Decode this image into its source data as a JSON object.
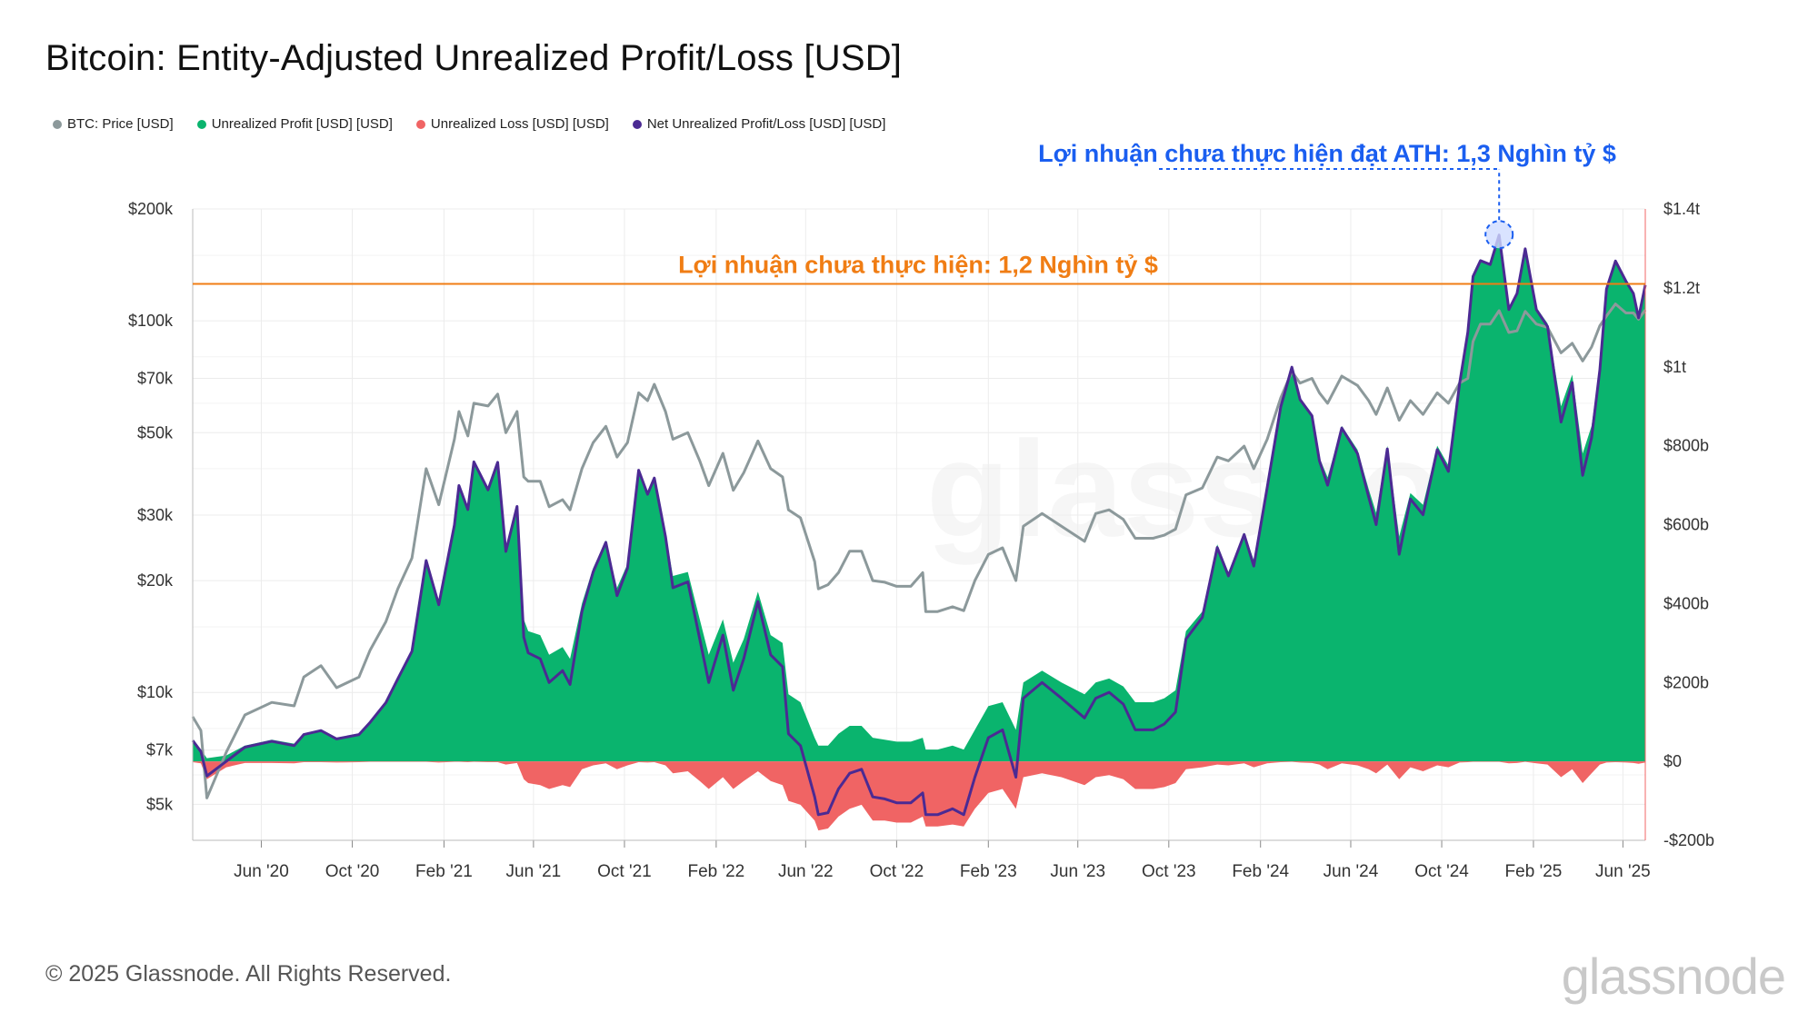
{
  "title": "Bitcoin: Entity-Adjusted Unrealized Profit/Loss [USD]",
  "footer": "© 2025 Glassnode. All Rights Reserved.",
  "brand": "glassnode",
  "colors": {
    "price": "#8c999b",
    "profit": "#0ab46e",
    "loss": "#f06464",
    "net": "#4b2a93",
    "ath_annotation": "#1a5ef0",
    "level_annotation": "#f07d14"
  },
  "chart_data": {
    "type": "area",
    "title": "Bitcoin: Entity-Adjusted Unrealized Profit/Loss [USD]",
    "legend": [
      {
        "key": "price",
        "label": "BTC: Price [USD]"
      },
      {
        "key": "profit",
        "label": "Unrealized Profit [USD] [USD]"
      },
      {
        "key": "loss",
        "label": "Unrealized Loss [USD] [USD]"
      },
      {
        "key": "net",
        "label": "Net Unrealized Profit/Loss [USD] [USD]"
      }
    ],
    "legend_position": "top-left",
    "x_range": [
      "2020-03-01",
      "2025-07-01"
    ],
    "x_ticks": [
      "Jun '20",
      "Oct '20",
      "Feb '21",
      "Jun '21",
      "Oct '21",
      "Feb '22",
      "Jun '22",
      "Oct '22",
      "Feb '23",
      "Jun '23",
      "Oct '23",
      "Feb '24",
      "Jun '24",
      "Oct '24",
      "Feb '25",
      "Jun '25"
    ],
    "left_axis": {
      "scale": "log",
      "range": [
        4000,
        200000
      ],
      "ticks": [
        "$200k",
        "$100k",
        "$70k",
        "$50k",
        "$30k",
        "$20k",
        "$10k",
        "$7k",
        "$5k"
      ]
    },
    "right_axis": {
      "scale": "linear",
      "range": [
        -200,
        1400
      ],
      "unit": "billion USD",
      "ticks": [
        "$1.4t",
        "$1.2t",
        "$1t",
        "$800b",
        "$600b",
        "$400b",
        "$200b",
        "$0",
        "-$200b"
      ]
    },
    "grid": true,
    "annotations": {
      "ath_label": "Lợi nhuận chưa thực hiện đạt ATH: 1,3 Nghìn tỷ $",
      "level_label": "Lợi nhuận chưa thực hiện: 1,2 Nghìn tỷ $",
      "level_value": 1210,
      "ath_date": "2024-12-17",
      "ath_value": 1335
    },
    "dates": [
      "2020-03-01",
      "2020-03-12",
      "2020-03-20",
      "2020-04-15",
      "2020-05-10",
      "2020-06-15",
      "2020-07-15",
      "2020-07-28",
      "2020-08-20",
      "2020-09-10",
      "2020-10-10",
      "2020-10-25",
      "2020-11-15",
      "2020-12-01",
      "2020-12-20",
      "2021-01-08",
      "2021-01-25",
      "2021-02-15",
      "2021-02-21",
      "2021-03-05",
      "2021-03-13",
      "2021-04-01",
      "2021-04-14",
      "2021-04-25",
      "2021-05-10",
      "2021-05-19",
      "2021-05-25",
      "2021-06-10",
      "2021-06-22",
      "2021-07-10",
      "2021-07-20",
      "2021-08-05",
      "2021-08-20",
      "2021-09-06",
      "2021-09-21",
      "2021-10-05",
      "2021-10-20",
      "2021-11-01",
      "2021-11-10",
      "2021-11-25",
      "2021-12-05",
      "2021-12-25",
      "2022-01-10",
      "2022-01-22",
      "2022-02-10",
      "2022-02-24",
      "2022-03-10",
      "2022-03-29",
      "2022-04-15",
      "2022-05-01",
      "2022-05-09",
      "2022-05-25",
      "2022-06-13",
      "2022-06-18",
      "2022-07-01",
      "2022-07-15",
      "2022-07-30",
      "2022-08-15",
      "2022-08-30",
      "2022-09-15",
      "2022-10-01",
      "2022-10-20",
      "2022-11-05",
      "2022-11-09",
      "2022-11-25",
      "2022-12-15",
      "2022-12-30",
      "2023-01-14",
      "2023-02-01",
      "2023-02-20",
      "2023-03-10",
      "2023-03-20",
      "2023-04-14",
      "2023-05-10",
      "2023-06-10",
      "2023-06-25",
      "2023-07-13",
      "2023-08-01",
      "2023-08-17",
      "2023-09-10",
      "2023-09-25",
      "2023-10-10",
      "2023-10-24",
      "2023-11-15",
      "2023-12-05",
      "2023-12-20",
      "2024-01-10",
      "2024-01-23",
      "2024-02-10",
      "2024-02-28",
      "2024-03-14",
      "2024-03-25",
      "2024-04-10",
      "2024-04-20",
      "2024-05-01",
      "2024-05-20",
      "2024-06-10",
      "2024-06-25",
      "2024-07-05",
      "2024-07-20",
      "2024-08-05",
      "2024-08-20",
      "2024-09-06",
      "2024-09-25",
      "2024-10-10",
      "2024-10-25",
      "2024-11-05",
      "2024-11-12",
      "2024-11-22",
      "2024-12-05",
      "2024-12-17",
      "2024-12-30",
      "2025-01-10",
      "2025-01-21",
      "2025-02-05",
      "2025-02-20",
      "2025-03-10",
      "2025-03-25",
      "2025-04-08",
      "2025-04-20",
      "2025-05-01",
      "2025-05-10",
      "2025-05-22",
      "2025-06-05",
      "2025-06-15",
      "2025-06-22",
      "2025-07-01"
    ],
    "series": [
      {
        "name": "BTC: Price [USD]",
        "key": "price",
        "values": [
          8600,
          7900,
          5200,
          6900,
          8700,
          9400,
          9200,
          11000,
          11800,
          10300,
          11000,
          13000,
          15500,
          19000,
          23000,
          40000,
          32000,
          48000,
          57000,
          49000,
          60000,
          59000,
          63500,
          50000,
          57000,
          38000,
          37000,
          37000,
          31600,
          33000,
          31000,
          40000,
          47000,
          52000,
          43000,
          47000,
          64000,
          61000,
          67500,
          57000,
          48000,
          50000,
          42000,
          36000,
          44000,
          35000,
          39000,
          47500,
          40000,
          38000,
          31000,
          29500,
          22500,
          19000,
          19500,
          21000,
          24000,
          24000,
          20000,
          19800,
          19300,
          19300,
          21000,
          16500,
          16500,
          17000,
          16600,
          20000,
          23500,
          24500,
          20000,
          28000,
          30300,
          28000,
          25500,
          30300,
          31000,
          29200,
          26000,
          26000,
          26500,
          27500,
          34000,
          35500,
          43000,
          42000,
          46000,
          40000,
          48000,
          62000,
          73000,
          68000,
          70000,
          64000,
          60000,
          71000,
          67000,
          61000,
          56000,
          66000,
          54000,
          61000,
          56000,
          64000,
          60000,
          68000,
          70000,
          88000,
          98000,
          98000,
          106500,
          93000,
          94000,
          106000,
          98000,
          96000,
          82000,
          87000,
          78000,
          85000,
          97000,
          103000,
          111000,
          105000,
          105000,
          101000,
          107000
        ]
      },
      {
        "name": "Unrealized Profit [USD] [USD]",
        "key": "profit",
        "values": [
          55,
          30,
          8,
          15,
          40,
          55,
          45,
          70,
          80,
          60,
          70,
          100,
          150,
          210,
          280,
          510,
          400,
          600,
          700,
          640,
          760,
          690,
          760,
          540,
          650,
          360,
          330,
          320,
          270,
          290,
          260,
          400,
          490,
          560,
          440,
          500,
          740,
          680,
          720,
          580,
          470,
          480,
          360,
          270,
          360,
          250,
          310,
          430,
          320,
          300,
          170,
          150,
          60,
          40,
          40,
          70,
          90,
          90,
          60,
          55,
          50,
          50,
          60,
          30,
          30,
          40,
          30,
          80,
          140,
          150,
          80,
          200,
          230,
          200,
          170,
          200,
          210,
          190,
          150,
          150,
          160,
          180,
          330,
          380,
          550,
          480,
          580,
          510,
          700,
          900,
          1000,
          920,
          880,
          770,
          720,
          850,
          790,
          690,
          630,
          800,
          570,
          680,
          650,
          800,
          750,
          960,
          1090,
          1230,
          1270,
          1260,
          1335,
          1150,
          1190,
          1300,
          1150,
          1110,
          900,
          980,
          780,
          850,
          1000,
          1200,
          1270,
          1220,
          1190,
          1130,
          1210
        ]
      },
      {
        "name": "Unrealized Loss [USD] [USD]",
        "key": "loss",
        "values": [
          -2,
          -5,
          -45,
          -15,
          -4,
          -4,
          -5,
          -2,
          -2,
          -3,
          -2,
          -1,
          -1,
          -1,
          -1,
          -1,
          -3,
          -1,
          -1,
          -2,
          -1,
          -2,
          -2,
          -8,
          -4,
          -45,
          -55,
          -60,
          -70,
          -60,
          -65,
          -20,
          -10,
          -5,
          -20,
          -10,
          -2,
          -3,
          -2,
          -10,
          -30,
          -25,
          -50,
          -70,
          -40,
          -70,
          -50,
          -25,
          -50,
          -60,
          -100,
          -110,
          -150,
          -175,
          -170,
          -140,
          -120,
          -110,
          -150,
          -150,
          -155,
          -155,
          -140,
          -165,
          -165,
          -160,
          -165,
          -120,
          -80,
          -70,
          -120,
          -40,
          -30,
          -40,
          -60,
          -40,
          -35,
          -45,
          -70,
          -70,
          -65,
          -55,
          -20,
          -15,
          -8,
          -10,
          -5,
          -15,
          -5,
          -2,
          -1,
          -3,
          -4,
          -8,
          -20,
          -5,
          -10,
          -20,
          -30,
          -8,
          -45,
          -15,
          -25,
          -10,
          -15,
          -3,
          -2,
          -1,
          -1,
          -1,
          -1,
          -5,
          -4,
          -1,
          -5,
          -8,
          -40,
          -20,
          -55,
          -30,
          -8,
          -3,
          -2,
          -3,
          -4,
          -6,
          -3
        ]
      },
      {
        "name": "Net Unrealized Profit/Loss [USD] [USD]",
        "key": "net",
        "values": [
          53,
          25,
          -37,
          0,
          36,
          51,
          40,
          68,
          78,
          57,
          68,
          99,
          149,
          209,
          279,
          509,
          397,
          599,
          699,
          638,
          759,
          688,
          758,
          532,
          646,
          315,
          275,
          260,
          200,
          230,
          195,
          380,
          480,
          555,
          420,
          490,
          738,
          677,
          718,
          570,
          440,
          455,
          310,
          200,
          320,
          180,
          260,
          405,
          270,
          240,
          70,
          40,
          -90,
          -135,
          -130,
          -70,
          -30,
          -20,
          -90,
          -95,
          -105,
          -105,
          -80,
          -135,
          -135,
          -120,
          -135,
          -40,
          60,
          80,
          -40,
          160,
          200,
          160,
          110,
          160,
          175,
          145,
          80,
          80,
          95,
          125,
          310,
          365,
          542,
          470,
          575,
          495,
          695,
          898,
          999,
          917,
          876,
          762,
          700,
          845,
          780,
          670,
          600,
          792,
          525,
          665,
          625,
          790,
          735,
          957,
          1088,
          1229,
          1269,
          1259,
          1334,
          1145,
          1186,
          1299,
          1145,
          1102,
          860,
          960,
          725,
          820,
          992,
          1197,
          1268,
          1217,
          1186,
          1124,
          1207
        ]
      }
    ]
  }
}
